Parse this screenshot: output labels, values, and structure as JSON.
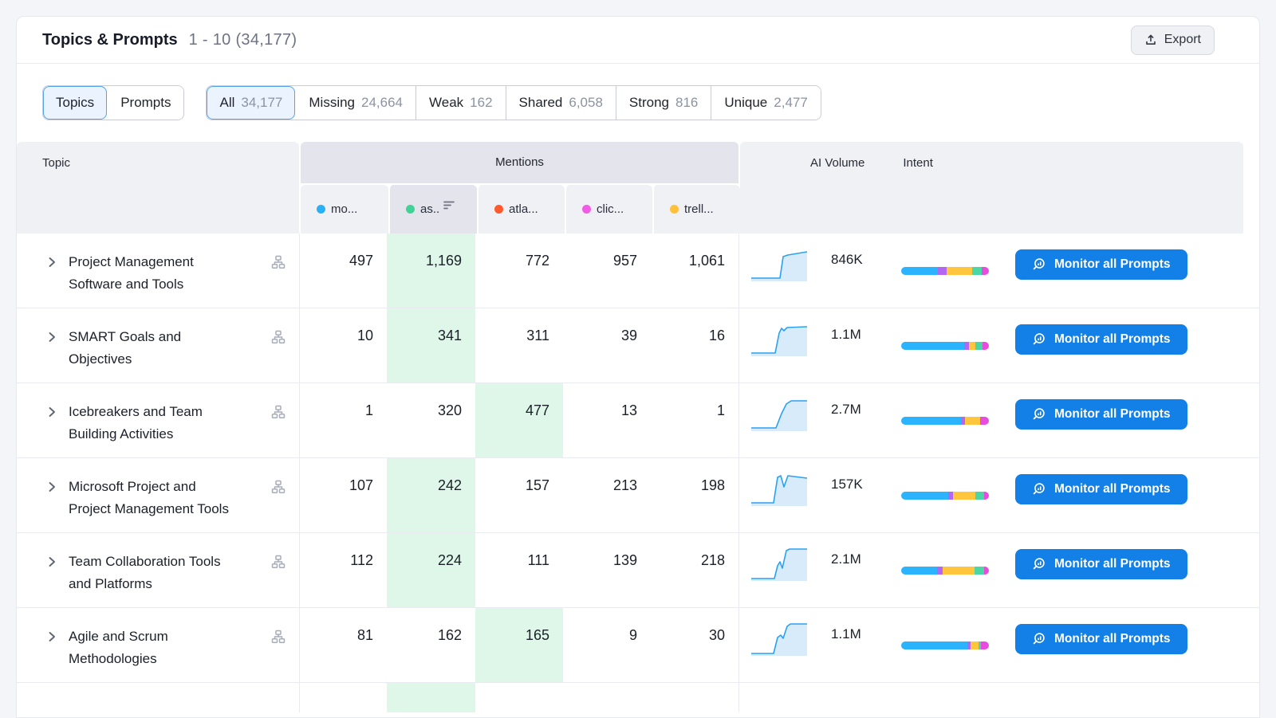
{
  "header": {
    "title": "Topics & Prompts",
    "range": "1 - 10 (34,177)",
    "export_label": "Export"
  },
  "filters": {
    "view_toggle": [
      {
        "label": "Topics",
        "selected": true
      },
      {
        "label": "Prompts",
        "selected": false
      }
    ],
    "segments": [
      {
        "label": "All",
        "count": "34,177",
        "selected": true
      },
      {
        "label": "Missing",
        "count": "24,664",
        "selected": false
      },
      {
        "label": "Weak",
        "count": "162",
        "selected": false
      },
      {
        "label": "Shared",
        "count": "6,058",
        "selected": false
      },
      {
        "label": "Strong",
        "count": "816",
        "selected": false
      },
      {
        "label": "Unique",
        "count": "2,477",
        "selected": false
      }
    ]
  },
  "table": {
    "topic_header": "Topic",
    "mentions_header": "Mentions",
    "ai_volume_header": "AI Volume",
    "intent_header": "Intent",
    "monitor_button_label": "Monitor all Prompts",
    "brand_columns": [
      {
        "label": "mo...",
        "color": "#29B1F7",
        "sorted": false
      },
      {
        "label": "as..",
        "color": "#3FD495",
        "sorted": true
      },
      {
        "label": "atla...",
        "color": "#FF5A2D",
        "sorted": false
      },
      {
        "label": "clic...",
        "color": "#F05CE3",
        "sorted": false
      },
      {
        "label": "trell...",
        "color": "#FFC13D",
        "sorted": false
      }
    ],
    "rows": [
      {
        "topic": "Project Management Software and Tools",
        "mentions": [
          "497",
          "1,169",
          "772",
          "957",
          "1,061"
        ],
        "max_index": 1,
        "ai_volume": "846K",
        "spark": [
          [
            0,
            42
          ],
          [
            36,
            42
          ],
          [
            40,
            15
          ],
          [
            46,
            13
          ],
          [
            70,
            9
          ]
        ],
        "intent": [
          42,
          10,
          29,
          11,
          8
        ]
      },
      {
        "topic": "SMART Goals and Objectives",
        "mentions": [
          "10",
          "341",
          "311",
          "39",
          "16"
        ],
        "max_index": 1,
        "ai_volume": "1.1M",
        "spark": [
          [
            0,
            42
          ],
          [
            30,
            42
          ],
          [
            35,
            17
          ],
          [
            38,
            11
          ],
          [
            41,
            14
          ],
          [
            45,
            10
          ],
          [
            70,
            9
          ]
        ],
        "intent": [
          72,
          5,
          8,
          8,
          7
        ]
      },
      {
        "topic": "Icebreakers and Team Building Activities",
        "mentions": [
          "1",
          "320",
          "477",
          "13",
          "1"
        ],
        "max_index": 2,
        "ai_volume": "2.7M",
        "spark": [
          [
            0,
            42
          ],
          [
            31,
            42
          ],
          [
            38,
            24
          ],
          [
            44,
            12
          ],
          [
            50,
            8
          ],
          [
            70,
            8
          ]
        ],
        "intent": [
          68,
          5,
          17,
          0,
          10
        ]
      },
      {
        "topic": "Microsoft Project and Project Management Tools",
        "mentions": [
          "107",
          "242",
          "157",
          "213",
          "198"
        ],
        "max_index": 1,
        "ai_volume": "157K",
        "spark": [
          [
            0,
            42
          ],
          [
            28,
            42
          ],
          [
            33,
            10
          ],
          [
            37,
            8
          ],
          [
            41,
            22
          ],
          [
            46,
            8
          ],
          [
            70,
            11
          ]
        ],
        "intent": [
          54,
          5,
          26,
          10,
          5
        ]
      },
      {
        "topic": "Team Collaboration Tools and Platforms",
        "mentions": [
          "112",
          "224",
          "111",
          "139",
          "218"
        ],
        "max_index": 1,
        "ai_volume": "2.1M",
        "spark": [
          [
            0,
            43
          ],
          [
            29,
            43
          ],
          [
            33,
            27
          ],
          [
            36,
            22
          ],
          [
            39,
            30
          ],
          [
            44,
            8
          ],
          [
            48,
            6
          ],
          [
            70,
            6
          ]
        ],
        "intent": [
          41,
          6,
          37,
          11,
          5
        ]
      },
      {
        "topic": "Agile and Scrum Methodologies",
        "mentions": [
          "81",
          "162",
          "165",
          "9",
          "30"
        ],
        "max_index": 2,
        "ai_volume": "1.1M",
        "spark": [
          [
            0,
            43
          ],
          [
            28,
            43
          ],
          [
            33,
            23
          ],
          [
            37,
            20
          ],
          [
            40,
            24
          ],
          [
            45,
            9
          ],
          [
            49,
            6
          ],
          [
            70,
            6
          ]
        ],
        "intent": [
          75,
          4,
          9,
          3,
          9
        ]
      }
    ]
  },
  "colors": {
    "button_blue": "#1380E8",
    "highlight_green": "#DEF7E9",
    "spark_line": "#2AA1F2",
    "spark_fill": "#D8EBFB",
    "selected_chip_border": "#57A2ED",
    "selected_chip_bg": "#EBF4FE",
    "intent_segments": [
      "#2BB3FD",
      "#B266F2",
      "#FFC53D",
      "#4BD7A5",
      "#E94BDF"
    ]
  }
}
